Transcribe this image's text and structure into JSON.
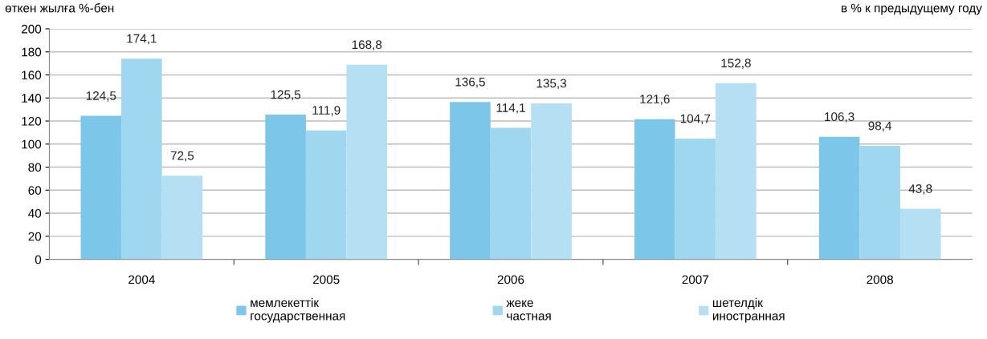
{
  "chart_data": {
    "type": "bar",
    "annotations": [
      "өткен жылға %-бен",
      "в % к предыдущему году"
    ],
    "categories": [
      "2004",
      "2005",
      "2006",
      "2007",
      "2008"
    ],
    "series": [
      {
        "name": "мемлекеттік\nгосударственная",
        "color": "#7cc6ea",
        "values": [
          124.5,
          125.5,
          136.5,
          121.6,
          106.3
        ],
        "value_labels": [
          "124,5",
          "125,5",
          "136,5",
          "121,6",
          "106,3"
        ]
      },
      {
        "name": "жеке\nчастная",
        "color": "#9fd6f0",
        "values": [
          174.1,
          111.9,
          114.1,
          104.7,
          98.4
        ],
        "value_labels": [
          "174,1",
          "111,9",
          "114,1",
          "104,7",
          "98,4"
        ]
      },
      {
        "name": "шетелдік\nиностранная",
        "color": "#b5e0f4",
        "values": [
          72.5,
          168.8,
          135.3,
          152.8,
          43.8
        ],
        "value_labels": [
          "72,5",
          "168,8",
          "135,3",
          "152,8",
          "43,8"
        ]
      }
    ],
    "ylim": [
      0,
      200
    ],
    "yticks": [
      0,
      20,
      40,
      60,
      80,
      100,
      120,
      140,
      160,
      180,
      200
    ],
    "grid": "y",
    "legend": "bottom"
  }
}
